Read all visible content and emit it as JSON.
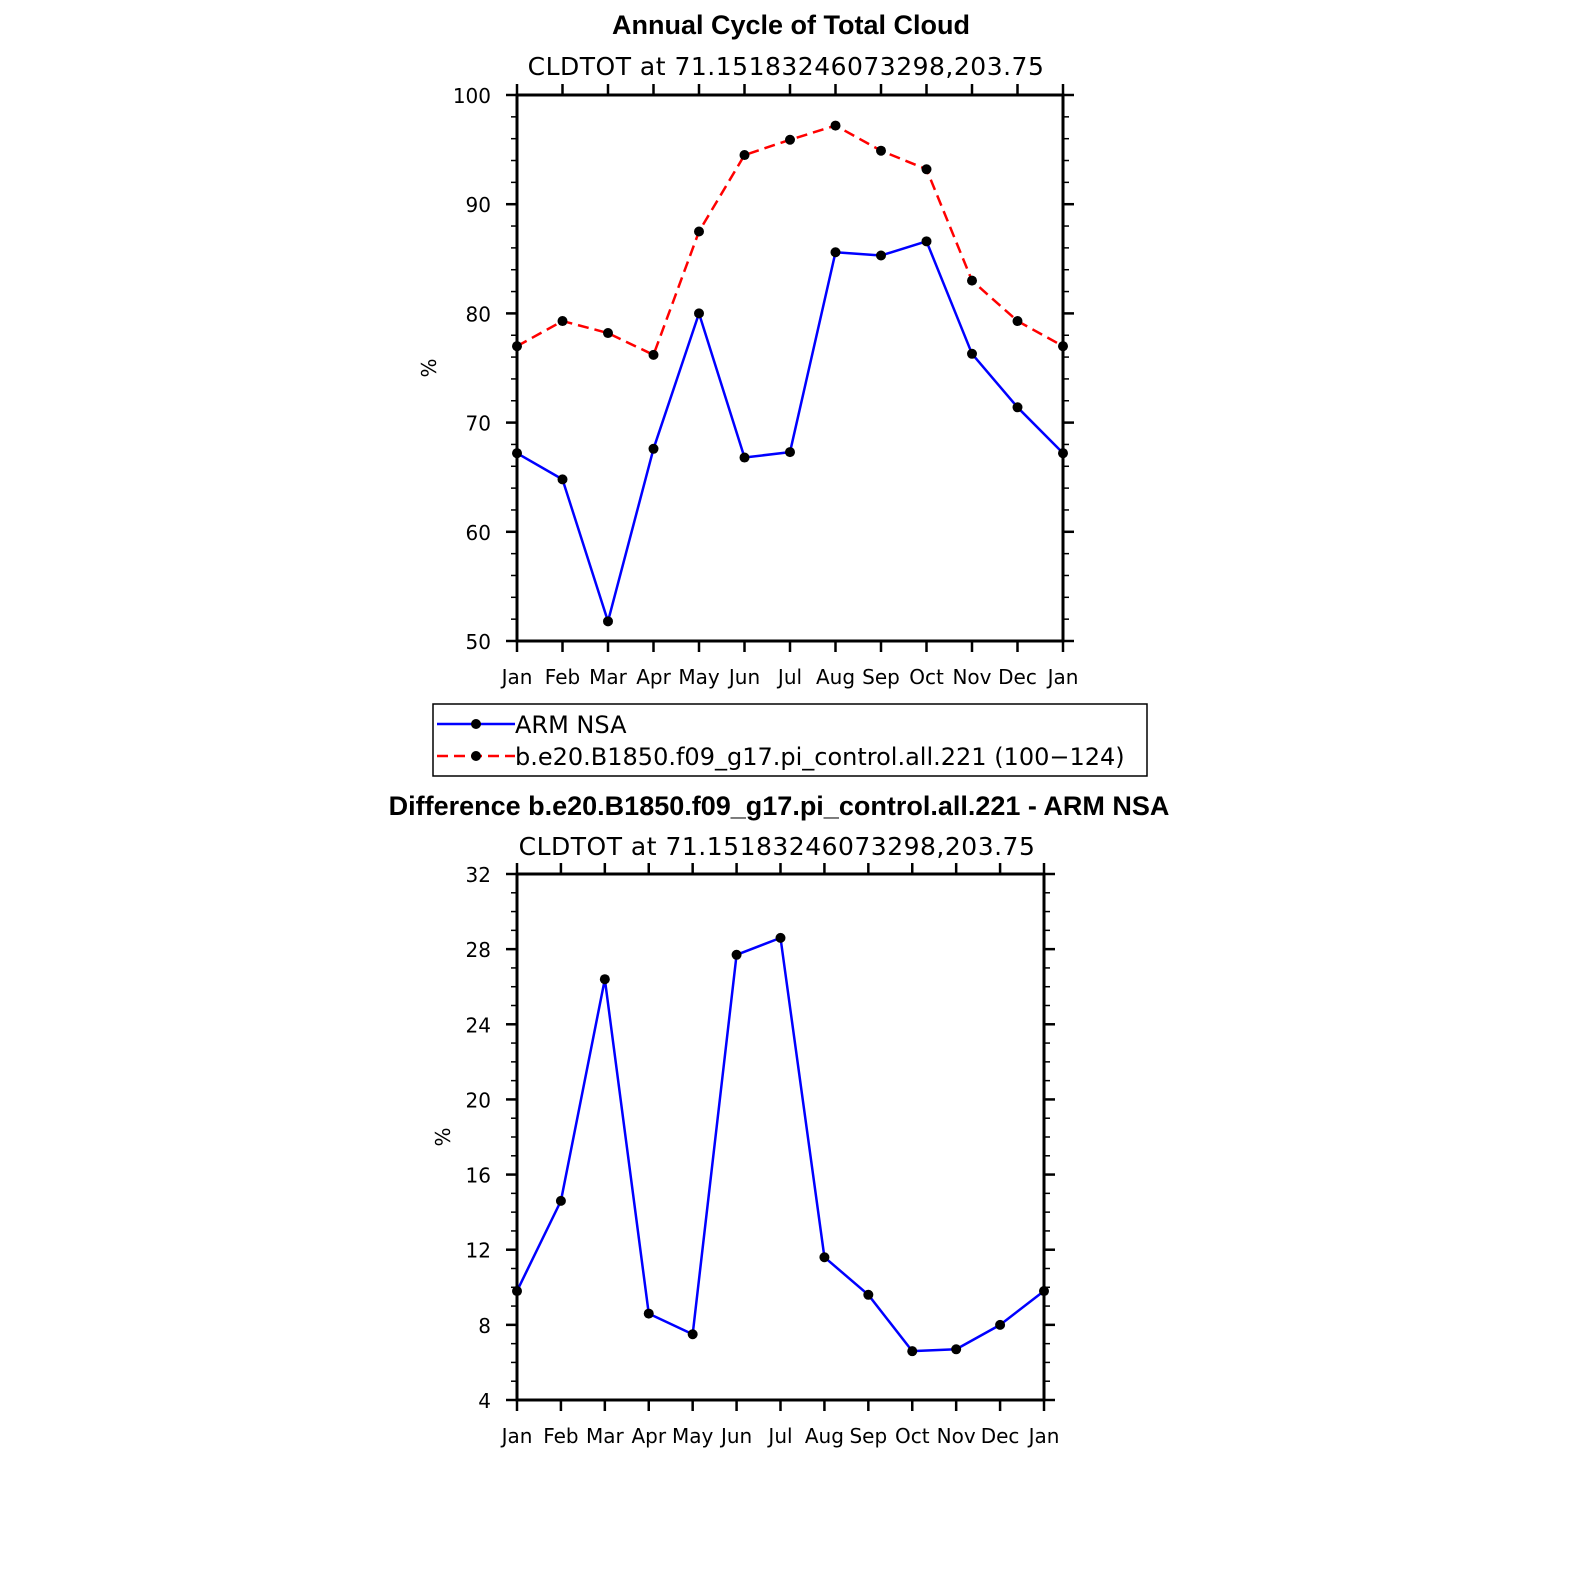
{
  "chart_data": [
    {
      "type": "line",
      "title": "Annual Cycle of Total Cloud",
      "subtitle": "CLDTOT at 71.15183246073298,203.75",
      "ylabel": "%",
      "xlabel": "",
      "categories": [
        "Jan",
        "Feb",
        "Mar",
        "Apr",
        "May",
        "Jun",
        "Jul",
        "Aug",
        "Sep",
        "Oct",
        "Nov",
        "Dec",
        "Jan"
      ],
      "ylim": [
        50,
        100
      ],
      "yticks": [
        50,
        60,
        70,
        80,
        90,
        100
      ],
      "series": [
        {
          "name": "ARM NSA",
          "color": "#0000ff",
          "style": "solid",
          "values": [
            67.2,
            64.8,
            51.8,
            67.6,
            80.0,
            66.8,
            67.3,
            85.6,
            85.3,
            86.6,
            76.3,
            71.4,
            67.2
          ]
        },
        {
          "name": "b.e20.B1850.f09_g17.pi_control.all.221 (100−124)",
          "color": "#ff0000",
          "style": "dashed",
          "values": [
            77.0,
            79.3,
            78.2,
            76.2,
            87.5,
            94.5,
            95.9,
            97.2,
            94.9,
            93.2,
            83.0,
            79.3,
            77.0
          ]
        }
      ],
      "legend_position": "below"
    },
    {
      "type": "line",
      "title": "Difference b.e20.B1850.f09_g17.pi_control.all.221 - ARM NSA",
      "subtitle": "CLDTOT at 71.15183246073298,203.75",
      "ylabel": "%",
      "xlabel": "",
      "categories": [
        "Jan",
        "Feb",
        "Mar",
        "Apr",
        "May",
        "Jun",
        "Jul",
        "Aug",
        "Sep",
        "Oct",
        "Nov",
        "Dec",
        "Jan"
      ],
      "ylim": [
        4,
        32
      ],
      "yticks": [
        4,
        8,
        12,
        16,
        20,
        24,
        28,
        32
      ],
      "series": [
        {
          "color": "#0000ff",
          "style": "solid",
          "values": [
            9.8,
            14.6,
            26.4,
            8.6,
            7.5,
            27.7,
            28.6,
            11.6,
            9.6,
            6.6,
            6.7,
            8.0,
            9.8
          ]
        }
      ]
    }
  ]
}
